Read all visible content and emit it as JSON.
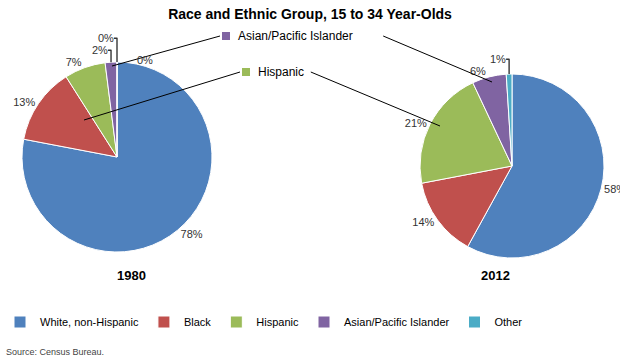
{
  "title": "Race and Ethnic Group, 15 to 34 Year-Olds",
  "source": "Source: Census Bureau.",
  "legend": "bottom",
  "annotations": [
    "Asian/Pacific Islander",
    "Hispanic"
  ],
  "chart_data": [
    {
      "type": "pie",
      "title": "1980",
      "categories": [
        "White, non-Hispanic",
        "Black",
        "Hispanic",
        "Asian/Pacific Islander",
        "Other"
      ],
      "values": [
        78,
        13,
        7,
        2,
        0
      ],
      "value_labels": [
        "78%",
        "13%",
        "7%",
        "2%",
        "0%"
      ],
      "colors": [
        "#4f81bd",
        "#c0504d",
        "#9bbb59",
        "#8064a2",
        "#4bacc6"
      ],
      "data_labels": true
    },
    {
      "type": "pie",
      "title": "2012",
      "categories": [
        "White, non-Hispanic",
        "Black",
        "Hispanic",
        "Asian/Pacific Islander",
        "Other"
      ],
      "values": [
        58,
        14,
        21,
        6,
        1
      ],
      "value_labels": [
        "58%",
        "14%",
        "21%",
        "6%",
        "1%"
      ],
      "colors": [
        "#4f81bd",
        "#c0504d",
        "#9bbb59",
        "#8064a2",
        "#4bacc6"
      ],
      "data_labels": true
    }
  ]
}
